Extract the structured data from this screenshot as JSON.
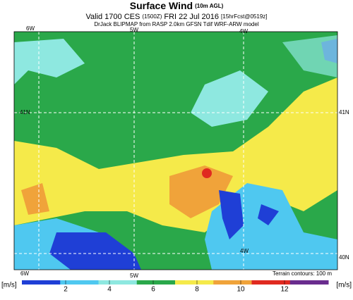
{
  "header": {
    "title": "Surface Wind",
    "title_note": "(10m AGL)",
    "valid": "Valid 1700 CES",
    "utc": "(1500Z)",
    "date": "FRI 22 Jul 2016",
    "forecast": "[15hrFcst@0519z]",
    "source": "DrJack BLIPMAP from RASP 2.0km GFSN Tdif WRF-ARW model"
  },
  "map": {
    "labels": {
      "top_6w": "6W",
      "top_5w": "5W",
      "top_4w": "4W",
      "left_41n": "41N",
      "right_41n": "41N",
      "inner_4w": "4W",
      "right_40n": "40N",
      "bottom_6w": "6W",
      "bottom_5w": "5W"
    },
    "terrain_note": "Terrain contours: 100 m"
  },
  "colorbar": {
    "unit": "[m/s]",
    "lim": [
      0,
      14
    ],
    "ticks": [
      2,
      4,
      6,
      8,
      10,
      12
    ],
    "colors": [
      "#1f3fd6",
      "#4fc8f0",
      "#8ee8e0",
      "#2aa84a",
      "#f5ea4a",
      "#f0a33a",
      "#e02a20",
      "#6a2c8e"
    ]
  }
}
